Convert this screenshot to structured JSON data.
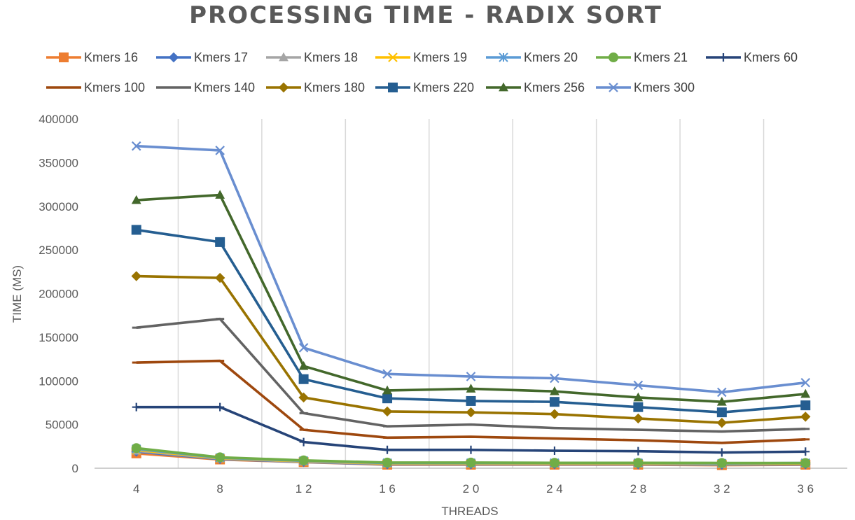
{
  "chart_data": {
    "type": "line",
    "title": "PROCESSING TIME - RADIX SORT",
    "xlabel": "THREADS",
    "ylabel": "TIME (MS)",
    "x": [
      "4",
      "8",
      "1 2",
      "1 6",
      "2 0",
      "2 4",
      "2 8",
      "3 2",
      "3 6"
    ],
    "ylim": [
      0,
      400000
    ],
    "yticks": [
      "0",
      "50000",
      "100000",
      "150000",
      "200000",
      "250000",
      "300000",
      "350000",
      "400000"
    ],
    "grid": "vertical",
    "legend_position": "top",
    "series": [
      {
        "name": "Kmers 16",
        "color": "#ED7D31",
        "marker": "square",
        "values": [
          17000,
          10000,
          7000,
          4000,
          4000,
          4000,
          4000,
          3500,
          4000
        ]
      },
      {
        "name": "Kmers 17",
        "color": "#4472C4",
        "marker": "diamond",
        "values": [
          19000,
          10500,
          7200,
          4500,
          4500,
          4500,
          4500,
          4000,
          4500
        ]
      },
      {
        "name": "Kmers 18",
        "color": "#A5A5A5",
        "marker": "triangle",
        "values": [
          20000,
          11000,
          7500,
          5000,
          5000,
          5000,
          5000,
          4500,
          5000
        ]
      },
      {
        "name": "Kmers 19",
        "color": "#FFC000",
        "marker": "x",
        "values": [
          21000,
          11500,
          8000,
          5500,
          5500,
          5500,
          5500,
          5000,
          5500
        ]
      },
      {
        "name": "Kmers 20",
        "color": "#5B9BD5",
        "marker": "star",
        "values": [
          22000,
          12000,
          8500,
          6000,
          6000,
          6000,
          6000,
          5500,
          6000
        ]
      },
      {
        "name": "Kmers 21",
        "color": "#70AD47",
        "marker": "circle",
        "values": [
          23000,
          12500,
          9000,
          6500,
          6500,
          6200,
          6200,
          6000,
          6000
        ]
      },
      {
        "name": "Kmers 60",
        "color": "#264478",
        "marker": "plus",
        "values": [
          70000,
          70000,
          30000,
          21000,
          21000,
          20000,
          19500,
          18000,
          19000
        ]
      },
      {
        "name": "Kmers 100",
        "color": "#9E480E",
        "marker": "dash",
        "values": [
          121000,
          123000,
          44000,
          35000,
          36000,
          34000,
          32000,
          29000,
          33000
        ]
      },
      {
        "name": "Kmers 140",
        "color": "#636363",
        "marker": "dash",
        "values": [
          161000,
          171000,
          63000,
          48000,
          50000,
          46000,
          44000,
          42000,
          45000
        ]
      },
      {
        "name": "Kmers 180",
        "color": "#997300",
        "marker": "diamond",
        "values": [
          220000,
          218000,
          81000,
          65000,
          64000,
          62000,
          57000,
          52000,
          59000
        ]
      },
      {
        "name": "Kmers 220",
        "color": "#255E91",
        "marker": "square",
        "values": [
          273000,
          259000,
          102000,
          80000,
          77000,
          76000,
          70000,
          64000,
          72000
        ]
      },
      {
        "name": "Kmers 256",
        "color": "#43682B",
        "marker": "triangle",
        "values": [
          307000,
          313000,
          117000,
          89000,
          91000,
          88000,
          81000,
          76000,
          85000
        ]
      },
      {
        "name": "Kmers 300",
        "color": "#698ED0",
        "marker": "x",
        "values": [
          369000,
          364000,
          138000,
          108000,
          105000,
          103000,
          95000,
          87000,
          98000
        ]
      }
    ]
  }
}
